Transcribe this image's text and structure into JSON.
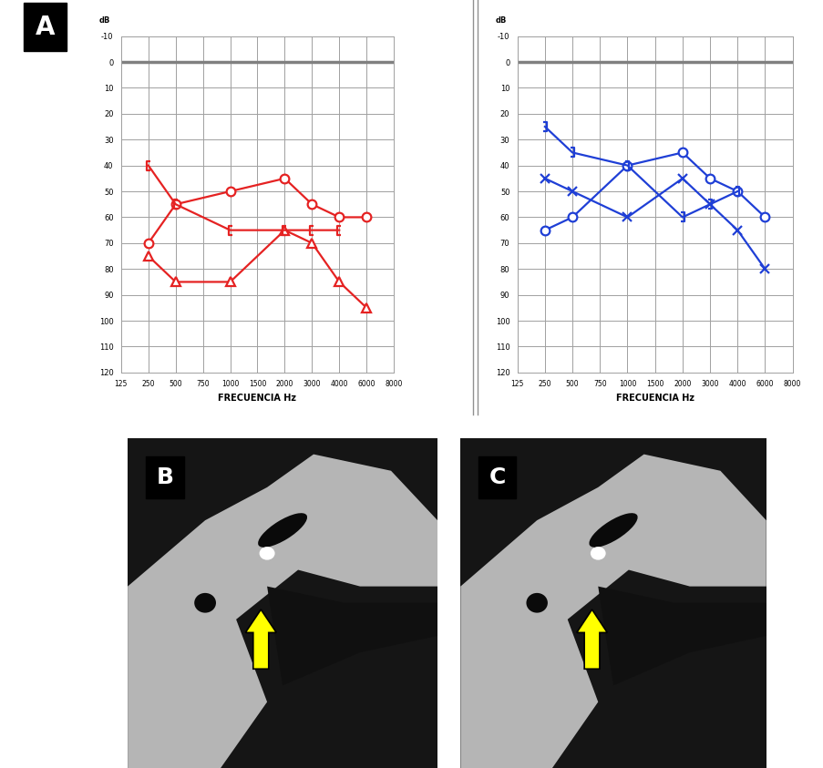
{
  "chart_data": [
    {
      "type": "line",
      "y_label": "dB",
      "x_label": "FRECUENCIA Hz",
      "categories": [
        "125",
        "250",
        "500",
        "750",
        "1000",
        "1500",
        "2000",
        "3000",
        "4000",
        "6000",
        "8000"
      ],
      "ylim": [
        120,
        -10
      ],
      "yticks": [
        -10,
        0,
        10,
        20,
        30,
        40,
        50,
        60,
        70,
        80,
        90,
        100,
        110,
        120
      ],
      "grid": true,
      "series": [
        {
          "color": "#e52222",
          "marker": "circle",
          "values": [
            null,
            70,
            55,
            null,
            50,
            null,
            45,
            55,
            60,
            60,
            null
          ]
        },
        {
          "color": "#e52222",
          "marker": "triangle",
          "values": [
            null,
            75,
            85,
            null,
            85,
            null,
            65,
            70,
            85,
            95,
            null
          ]
        },
        {
          "color": "#e52222",
          "marker": "bracket_left",
          "values": [
            null,
            40,
            55,
            null,
            65,
            null,
            65,
            65,
            65,
            null,
            null
          ]
        }
      ]
    },
    {
      "type": "line",
      "y_label": "dB",
      "x_label": "FRECUENCIA Hz",
      "categories": [
        "125",
        "250",
        "500",
        "750",
        "1000",
        "1500",
        "2000",
        "3000",
        "4000",
        "6000",
        "8000"
      ],
      "ylim": [
        120,
        -10
      ],
      "yticks": [
        -10,
        0,
        10,
        20,
        30,
        40,
        50,
        60,
        70,
        80,
        90,
        100,
        110,
        120
      ],
      "grid": true,
      "series": [
        {
          "color": "#1f3fd6",
          "marker": "circle",
          "values": [
            null,
            65,
            60,
            null,
            40,
            null,
            35,
            45,
            50,
            60,
            null
          ]
        },
        {
          "color": "#1f3fd6",
          "marker": "x",
          "values": [
            null,
            45,
            50,
            null,
            60,
            null,
            45,
            55,
            65,
            80,
            null
          ]
        },
        {
          "color": "#1f3fd6",
          "marker": "bracket_right",
          "values": [
            null,
            25,
            35,
            null,
            40,
            null,
            60,
            55,
            50,
            null,
            null
          ]
        }
      ]
    }
  ],
  "panel_labels": {
    "charts": "A",
    "images": [
      "B",
      "C"
    ]
  }
}
